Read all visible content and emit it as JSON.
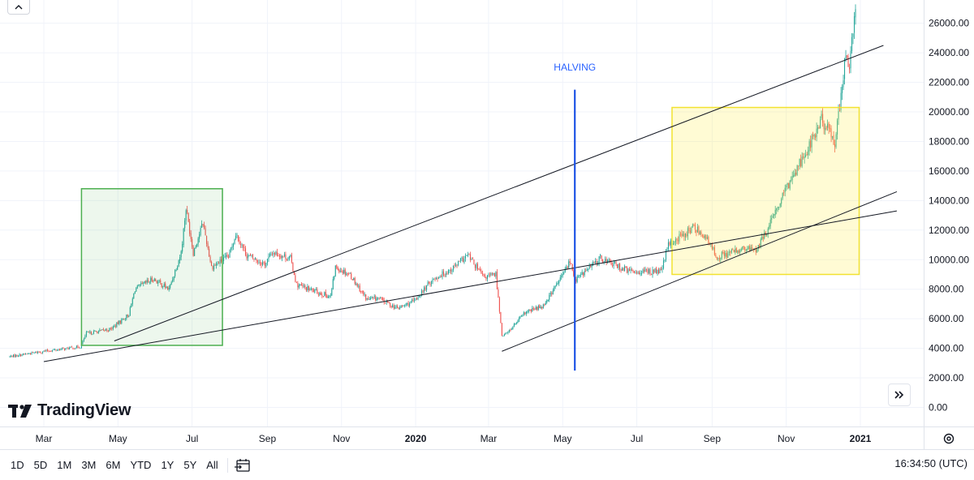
{
  "toolbar": {
    "ranges": [
      "1D",
      "5D",
      "1M",
      "3M",
      "6M",
      "YTD",
      "1Y",
      "5Y",
      "All"
    ],
    "clock": "16:34:50 (UTC)"
  },
  "logo": {
    "text": "TradingView"
  },
  "icons": {
    "collapse": "chevron-up-icon",
    "goto": "double-chevron-right-icon",
    "date_range": "calendar-arrow-icon",
    "settings": "gear-icon"
  },
  "chart_data": {
    "type": "candlestick",
    "instrument_hint": "BTC/USD daily",
    "x_tick_labels": [
      "Mar",
      "May",
      "Jul",
      "Sep",
      "Nov",
      "2020",
      "Mar",
      "May",
      "Jul",
      "Sep",
      "Nov",
      "2021"
    ],
    "x_tick_dates": [
      "2019-03-01",
      "2019-05-01",
      "2019-07-01",
      "2019-09-01",
      "2019-11-01",
      "2020-01-01",
      "2020-03-01",
      "2020-05-01",
      "2020-07-01",
      "2020-09-01",
      "2020-11-01",
      "2021-01-01"
    ],
    "y_tick_labels": [
      "0.00",
      "2000.00",
      "4000.00",
      "6000.00",
      "8000.00",
      "10000.00",
      "12000.00",
      "14000.00",
      "16000.00",
      "18000.00",
      "20000.00",
      "22000.00",
      "24000.00",
      "26000.00"
    ],
    "ylim": [
      0,
      27500
    ],
    "xlim": [
      "2019-02-01",
      "2021-01-31"
    ],
    "price_path": [
      [
        "2019-02-01",
        3450
      ],
      [
        "2019-03-01",
        3800
      ],
      [
        "2019-03-31",
        4100
      ],
      [
        "2019-04-05",
        5000
      ],
      [
        "2019-04-25",
        5300
      ],
      [
        "2019-05-10",
        6300
      ],
      [
        "2019-05-15",
        8000
      ],
      [
        "2019-05-30",
        8700
      ],
      [
        "2019-06-12",
        8000
      ],
      [
        "2019-06-22",
        10500
      ],
      [
        "2019-06-26",
        13500
      ],
      [
        "2019-07-02",
        10500
      ],
      [
        "2019-07-10",
        12500
      ],
      [
        "2019-07-17",
        9500
      ],
      [
        "2019-07-31",
        10200
      ],
      [
        "2019-08-06",
        11800
      ],
      [
        "2019-08-15",
        10300
      ],
      [
        "2019-08-30",
        9700
      ],
      [
        "2019-09-05",
        10500
      ],
      [
        "2019-09-20",
        10100
      ],
      [
        "2019-09-25",
        8300
      ],
      [
        "2019-10-05",
        8000
      ],
      [
        "2019-10-23",
        7500
      ],
      [
        "2019-10-27",
        9500
      ],
      [
        "2019-11-08",
        9000
      ],
      [
        "2019-11-22",
        7300
      ],
      [
        "2019-12-01",
        7400
      ],
      [
        "2019-12-17",
        6700
      ],
      [
        "2019-12-31",
        7200
      ],
      [
        "2020-01-14",
        8600
      ],
      [
        "2020-01-31",
        9400
      ],
      [
        "2020-02-13",
        10300
      ],
      [
        "2020-02-26",
        8800
      ],
      [
        "2020-03-07",
        9000
      ],
      [
        "2020-03-12",
        4900
      ],
      [
        "2020-03-16",
        5000
      ],
      [
        "2020-03-31",
        6400
      ],
      [
        "2020-04-15",
        6900
      ],
      [
        "2020-04-29",
        8700
      ],
      [
        "2020-05-07",
        9900
      ],
      [
        "2020-05-11",
        8600
      ],
      [
        "2020-06-01",
        10100
      ],
      [
        "2020-06-25",
        9200
      ],
      [
        "2020-07-21",
        9200
      ],
      [
        "2020-07-27",
        11000
      ],
      [
        "2020-08-17",
        12200
      ],
      [
        "2020-08-25",
        11700
      ],
      [
        "2020-09-05",
        10200
      ],
      [
        "2020-09-25",
        10700
      ],
      [
        "2020-10-08",
        10700
      ],
      [
        "2020-10-21",
        12800
      ],
      [
        "2020-11-05",
        15500
      ],
      [
        "2020-11-25",
        18500
      ],
      [
        "2020-11-30",
        19500
      ],
      [
        "2020-12-11",
        18000
      ],
      [
        "2020-12-16",
        21000
      ],
      [
        "2020-12-20",
        24000
      ],
      [
        "2020-12-23",
        23000
      ],
      [
        "2020-12-28",
        27000
      ],
      [
        "2020-12-31",
        29000
      ]
    ],
    "annotations": {
      "text": "HALVING",
      "halving_line": {
        "date": "2020-05-11",
        "from": 2500,
        "to": 21500,
        "color": "#1e53e5"
      },
      "upper_trendline": {
        "from": [
          "2019-04-28",
          4500
        ],
        "to": [
          "2021-01-20",
          24500
        ],
        "color": "#131722"
      },
      "lower_trendline": {
        "from": [
          "2019-03-01",
          3100
        ],
        "to": [
          "2021-01-31",
          13300
        ],
        "color": "#131722"
      },
      "channel_line": {
        "from": [
          "2020-03-12",
          3800
        ],
        "to": [
          "2021-01-31",
          14600
        ],
        "color": "#131722"
      },
      "green_box": {
        "from": [
          "2019-04-01",
          4200
        ],
        "to": [
          "2019-07-26",
          14800
        ],
        "color": "#4caf50"
      },
      "yellow_box": {
        "from": [
          "2020-07-30",
          9000
        ],
        "to": [
          "2020-12-31",
          20300
        ],
        "color": "#f5e642"
      }
    },
    "colors": {
      "up": "#26a69a",
      "down": "#ef5350",
      "grid": "#f0f3fa"
    },
    "grid": true
  }
}
